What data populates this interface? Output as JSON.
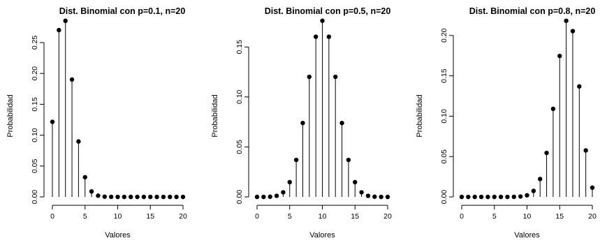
{
  "chart_data": [
    {
      "type": "lollipop",
      "title": "Dist. Binomial con p=0.1, n=20",
      "xlabel": "Valores",
      "ylabel": "Probabilidad",
      "xlim": [
        0,
        20
      ],
      "ylim": [
        0,
        0.285
      ],
      "x_ticks": [
        "0",
        "5",
        "10",
        "15",
        "20"
      ],
      "y_ticks": [
        "0.00",
        "0.05",
        "0.10",
        "0.15",
        "0.20",
        "0.25"
      ],
      "grid": false,
      "x": [
        0,
        1,
        2,
        3,
        4,
        5,
        6,
        7,
        8,
        9,
        10,
        11,
        12,
        13,
        14,
        15,
        16,
        17,
        18,
        19,
        20
      ],
      "values": [
        0.1216,
        0.2702,
        0.2852,
        0.1901,
        0.0898,
        0.0319,
        0.0089,
        0.002,
        0.0004,
        0.0001,
        0.0,
        0.0,
        0.0,
        0.0,
        0.0,
        0.0,
        0.0,
        0.0,
        0.0,
        0.0,
        0.0
      ]
    },
    {
      "type": "lollipop",
      "title": "Dist. Binomial con p=0.5, n=20",
      "xlabel": "Valores",
      "ylabel": "Probabilidad",
      "xlim": [
        0,
        20
      ],
      "ylim": [
        0,
        0.176
      ],
      "x_ticks": [
        "0",
        "5",
        "10",
        "15",
        "20"
      ],
      "y_ticks": [
        "0.00",
        "0.05",
        "0.10",
        "0.15"
      ],
      "grid": false,
      "x": [
        0,
        1,
        2,
        3,
        4,
        5,
        6,
        7,
        8,
        9,
        10,
        11,
        12,
        13,
        14,
        15,
        16,
        17,
        18,
        19,
        20
      ],
      "values": [
        0.0,
        0.0,
        0.0002,
        0.0011,
        0.0046,
        0.0148,
        0.037,
        0.0739,
        0.1201,
        0.1602,
        0.1762,
        0.1602,
        0.1201,
        0.0739,
        0.037,
        0.0148,
        0.0046,
        0.0011,
        0.0002,
        0.0,
        0.0
      ]
    },
    {
      "type": "lollipop",
      "title": "Dist. Binomial con p=0.8, n=20",
      "xlabel": "Valores",
      "ylabel": "Probabilidad",
      "xlim": [
        0,
        20
      ],
      "ylim": [
        0,
        0.218
      ],
      "x_ticks": [
        "0",
        "5",
        "10",
        "15",
        "20"
      ],
      "y_ticks": [
        "0.00",
        "0.05",
        "0.10",
        "0.15",
        "0.20"
      ],
      "grid": false,
      "x": [
        0,
        1,
        2,
        3,
        4,
        5,
        6,
        7,
        8,
        9,
        10,
        11,
        12,
        13,
        14,
        15,
        16,
        17,
        18,
        19,
        20
      ],
      "values": [
        0.0,
        0.0,
        0.0,
        0.0,
        0.0,
        0.0,
        0.0,
        0.0,
        0.0001,
        0.0005,
        0.002,
        0.0074,
        0.0222,
        0.0545,
        0.1091,
        0.1746,
        0.2182,
        0.2054,
        0.1369,
        0.0576,
        0.0115
      ]
    }
  ]
}
